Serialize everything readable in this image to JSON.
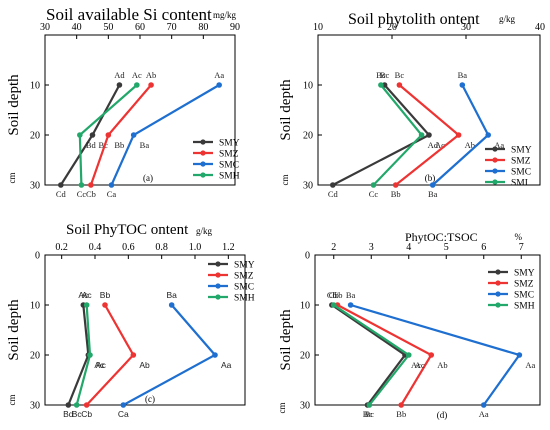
{
  "chart_data": [
    {
      "type": "line",
      "title": "Soil available Si content",
      "unit": "mg/kg",
      "xlabel": "",
      "ylabel": "Soil depth",
      "y_unit": "cm",
      "panel_label": "(a)",
      "xlim": [
        30,
        90
      ],
      "xticks": [
        "30",
        "40",
        "50",
        "60",
        "70",
        "80",
        "90"
      ],
      "ylim": [
        0,
        30
      ],
      "yticks": [
        "10",
        "20",
        "30"
      ],
      "depths": [
        10,
        20,
        30
      ],
      "series": [
        {
          "name": "SMY",
          "color": "#3a3a3a",
          "x": [
            53.5,
            45,
            35
          ],
          "labels": [
            "Ad",
            "Bc",
            "Cd"
          ]
        },
        {
          "name": "SMZ",
          "color": "#ee3333",
          "x": [
            63.5,
            50,
            44.5
          ],
          "labels": [
            "Ab",
            "Bb",
            "Cb"
          ]
        },
        {
          "name": "SMC",
          "color": "#1e6fd0",
          "x": [
            85,
            58,
            51
          ],
          "labels": [
            "Aa",
            "Ba",
            "Ca"
          ]
        },
        {
          "name": "SMH",
          "color": "#22a86a",
          "x": [
            59,
            41,
            41.5
          ],
          "labels": [
            "Ac",
            "Bd",
            "Cc"
          ]
        }
      ],
      "legend": "bottom-right"
    },
    {
      "type": "line",
      "title": "Soil phytolith ontent",
      "unit": "g/kg",
      "xlabel": "",
      "ylabel": "Soil depth",
      "y_unit": "cm",
      "panel_label": "(b)",
      "xlim": [
        10,
        40
      ],
      "xticks": [
        "10",
        "20",
        "30",
        "40"
      ],
      "ylim": [
        0,
        30
      ],
      "yticks": [
        "10",
        "20",
        "30"
      ],
      "depths": [
        10,
        20,
        30
      ],
      "series": [
        {
          "name": "SMY",
          "color": "#3a3a3a",
          "x": [
            19,
            25,
            12
          ],
          "labels": [
            "Bc",
            "Ac",
            "Cd"
          ]
        },
        {
          "name": "SMZ",
          "color": "#ee3333",
          "x": [
            21,
            29,
            20.5
          ],
          "labels": [
            "Bc",
            "Ab",
            "Bb"
          ]
        },
        {
          "name": "SMC",
          "color": "#1e6fd0",
          "x": [
            29.5,
            33,
            25.5
          ],
          "labels": [
            "Ba",
            "Aa",
            "Ba"
          ]
        },
        {
          "name": "SMI",
          "color": "#22a86a",
          "x": [
            18.5,
            24,
            17.5
          ],
          "labels": [
            "Bc",
            "Ad",
            "Cc"
          ]
        }
      ],
      "legend": "bottom-right"
    },
    {
      "type": "line",
      "title": "Soil PhyTOC ontent",
      "unit": "g/kg",
      "xlabel": "",
      "ylabel": "Soil depth",
      "y_unit": "cm",
      "panel_label": "(c)",
      "xlim": [
        0.1,
        1.3
      ],
      "xticks": [
        "0.2",
        "0.4",
        "0.6",
        "0.8",
        "1.0",
        "1.2"
      ],
      "ylim": [
        0,
        30
      ],
      "yticks": [
        "0",
        "10",
        "20",
        "30"
      ],
      "depths": [
        10,
        20,
        30
      ],
      "series": [
        {
          "name": "SMY",
          "color": "#3a3a3a",
          "x": [
            0.33,
            0.36,
            0.24
          ],
          "labels": [
            "Ac",
            "Ac",
            "Bd"
          ]
        },
        {
          "name": "SMZ",
          "color": "#ee3333",
          "x": [
            0.46,
            0.63,
            0.35
          ],
          "labels": [
            "Bb",
            "Ab",
            "Cb"
          ]
        },
        {
          "name": "SMC",
          "color": "#1e6fd0",
          "x": [
            0.86,
            1.12,
            0.57
          ],
          "labels": [
            "Ba",
            "Aa",
            "Ca"
          ]
        },
        {
          "name": "SMH",
          "color": "#22a86a",
          "x": [
            0.35,
            0.37,
            0.29
          ],
          "labels": [
            "Ac",
            "Ac",
            "Bc"
          ]
        }
      ],
      "legend": "top-right"
    },
    {
      "type": "line",
      "title": "PhytOC:TSOC",
      "unit": "%",
      "xlabel": "",
      "ylabel": "Soil depth",
      "y_unit": "cm",
      "panel_label": "(d)",
      "xlim": [
        1.5,
        7.5
      ],
      "xticks": [
        "2",
        "3",
        "4",
        "5",
        "6",
        "7"
      ],
      "ylim": [
        0,
        30
      ],
      "yticks": [
        "0",
        "10",
        "20",
        "30"
      ],
      "depths": [
        10,
        20,
        30
      ],
      "series": [
        {
          "name": "SMY",
          "color": "#3a3a3a",
          "x": [
            1.95,
            3.9,
            2.9
          ],
          "labels": [
            "Cb",
            "Ac",
            "Bc"
          ]
        },
        {
          "name": "SMZ",
          "color": "#ee3333",
          "x": [
            2.1,
            4.6,
            3.8
          ],
          "labels": [
            "Cb",
            "Ab",
            "Bb"
          ]
        },
        {
          "name": "SMC",
          "color": "#1e6fd0",
          "x": [
            2.45,
            6.95,
            6.0
          ],
          "labels": [
            "Ba",
            "Aa",
            "Aa"
          ]
        },
        {
          "name": "SMH",
          "color": "#22a86a",
          "x": [
            2.0,
            4.0,
            2.95
          ],
          "labels": [
            "Cb",
            "Ac",
            "Bc"
          ]
        }
      ],
      "legend": "top-right"
    }
  ]
}
